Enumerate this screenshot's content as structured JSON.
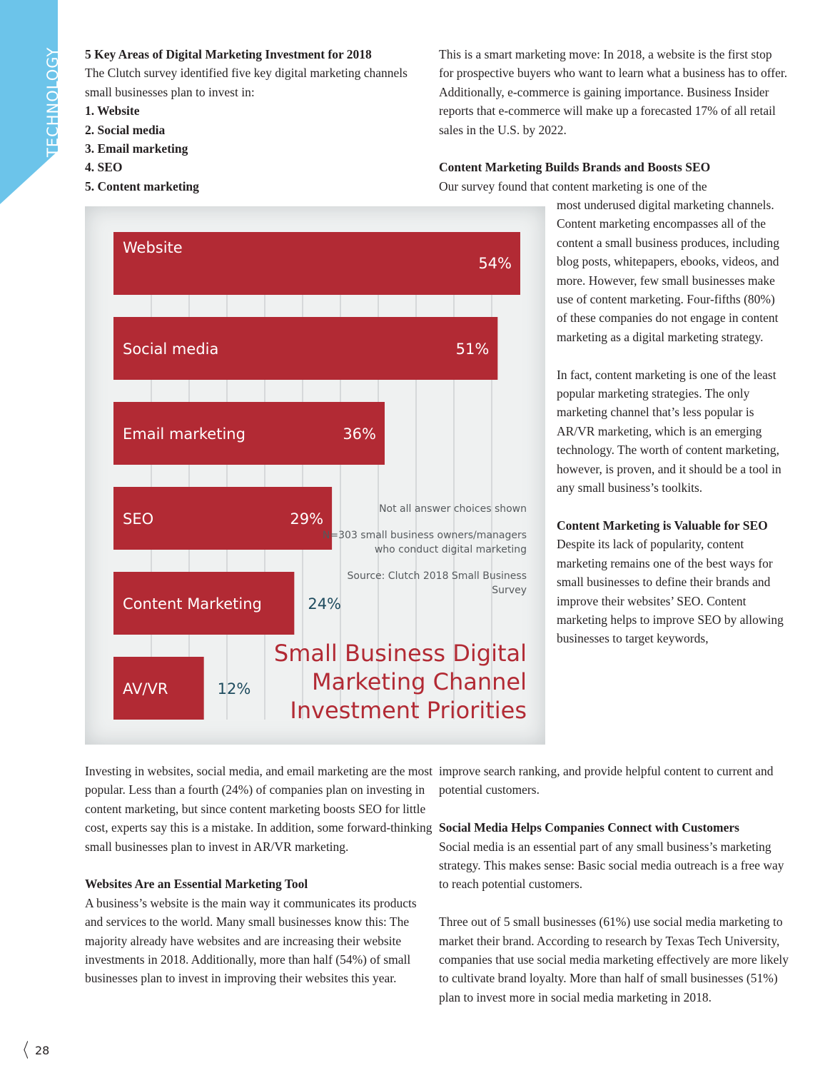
{
  "section_tab": "TECHNOLOGY",
  "page_number": "28",
  "left_top": {
    "heading": "5 Key Areas of Digital Marketing Investment for 2018",
    "intro": "The Clutch survey identified five key digital marketing channels small businesses plan to invest in:",
    "list": [
      "1. Website",
      "2. Social media",
      "3. Email marketing",
      "4. SEO",
      "5. Content marketing"
    ]
  },
  "right_top": {
    "para1": "This is a smart marketing move: In 2018, a website is the first stop for prospective buyers who want to learn what a business has to offer. Additionally, e-commerce is gaining importance. Business Insider reports that e-commerce will make up a forecasted 17% of all retail sales in the U.S. by 2022.",
    "heading": "Content Marketing Builds Brands and Boosts SEO",
    "lead": "Our survey found that content marketing is one of the"
  },
  "right_wrap": {
    "para1": "most underused digital marketing channels. Content marketing encompasses all of the content a small business produces, including blog posts, whitepapers, ebooks, videos, and more. However, few small businesses make use of content marketing. Four-fifths (80%) of these companies do not engage in content marketing as a digital marketing strategy.",
    "para2": "In fact, content marketing is one of the least popular marketing strategies. The only marketing channel that’s less popular is AR/VR marketing, which is an emerging technology. The worth of content marketing, however, is proven, and it should be a tool in any small business’s toolkits.",
    "heading": "Content Marketing is Valuable for SEO",
    "para3": "Despite its lack of popularity, content marketing remains one of the best ways for small businesses to define their brands and improve their websites’ SEO. Content marketing helps to improve SEO by allowing businesses to target keywords,"
  },
  "right_bottom": {
    "para1": "improve search ranking, and provide helpful content to current and potential customers.",
    "heading": "Social Media Helps Companies Connect with Customers",
    "para2": "Social media is an essential part of any small business’s marketing strategy. This makes sense: Basic social media outreach is a free way to reach potential customers.",
    "para3": "Three out of 5 small businesses (61%) use social media marketing to market their brand. According to research by Texas Tech University, companies that use social media marketing effectively are more likely to cultivate brand loyalty. More than half of small businesses (51%) plan to invest more in social media marketing in 2018."
  },
  "left_bottom": {
    "para1": "Investing in websites, social media, and email marketing are the most popular. Less than a fourth (24%) of companies plan on investing in content marketing, but since content marketing boosts SEO for little cost, experts say this is a mistake. In addition, some forward-thinking small businesses plan to invest in AR/VR marketing.",
    "heading": "Websites Are an Essential Marketing Tool",
    "para2": "A business’s website is the main way it communicates its products and services to the world. Many small businesses know this: The majority already have websites and are increasing their website investments in 2018. Additionally, more than half (54%) of small businesses plan to invest in improving their websites this year."
  },
  "chart_data": {
    "type": "bar",
    "orientation": "horizontal",
    "title": "Small Business Digital Marketing Channel Investment Priorities",
    "categories": [
      "Website",
      "Social media",
      "Email marketing",
      "SEO",
      "Content Marketing",
      "AV/VR"
    ],
    "values": [
      54,
      51,
      36,
      29,
      24,
      12
    ],
    "value_labels": [
      "54%",
      "51%",
      "36%",
      "29%",
      "24%",
      "12%"
    ],
    "unit": "%",
    "xlim": [
      0,
      54
    ],
    "grid": true,
    "bar_color": "#b22a34",
    "notes": [
      "Not all answer choices shown",
      "N=303 small business owners/managers who conduct digital marketing",
      "Source: Clutch 2018 Small Business Survey"
    ]
  }
}
